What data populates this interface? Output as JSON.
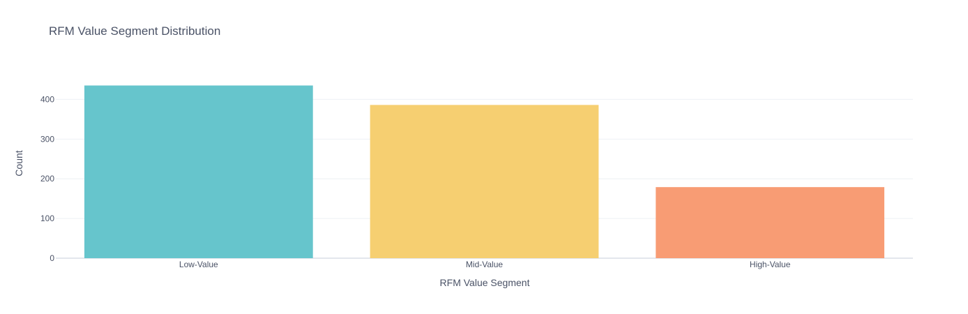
{
  "chart_data": {
    "type": "bar",
    "title": "RFM Value Segment Distribution",
    "xlabel": "RFM Value Segment",
    "ylabel": "Count",
    "categories": [
      "Low-Value",
      "Mid-Value",
      "High-Value"
    ],
    "values": [
      435,
      386,
      179
    ],
    "colors": [
      "#66c5cc",
      "#f6cf71",
      "#f89c74"
    ],
    "ylim": [
      0,
      457
    ],
    "yticks": [
      0,
      100,
      200,
      300,
      400
    ],
    "grid": true,
    "legend": "none"
  }
}
